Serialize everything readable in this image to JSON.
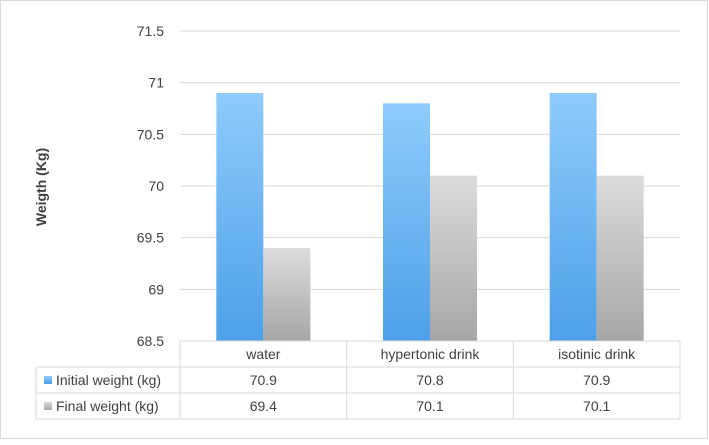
{
  "chart_data": {
    "type": "bar",
    "title": "",
    "xlabel": "",
    "ylabel": "Weigth  (Kg)",
    "ylim": [
      68.5,
      71.5
    ],
    "yticks": [
      "68.5",
      "69",
      "69.5",
      "70",
      "70.5",
      "71",
      "71.5"
    ],
    "grid": true,
    "categories": [
      "water",
      "hypertonic drink",
      "isotinic drink"
    ],
    "series": [
      {
        "name": "Initial weight (kg)",
        "values": [
          70.9,
          70.8,
          70.9
        ],
        "labels": [
          "70.9",
          "70.8",
          "70.9"
        ],
        "color_top": "#8fcbfb",
        "color_bottom": "#4da0e8"
      },
      {
        "name": "Final weight (kg)",
        "values": [
          69.4,
          70.1,
          70.1
        ],
        "labels": [
          "69.4",
          "70.1",
          "70.1"
        ],
        "color_top": "#dcdcdc",
        "color_bottom": "#a6a6a6"
      }
    ],
    "legend": "data-table"
  }
}
